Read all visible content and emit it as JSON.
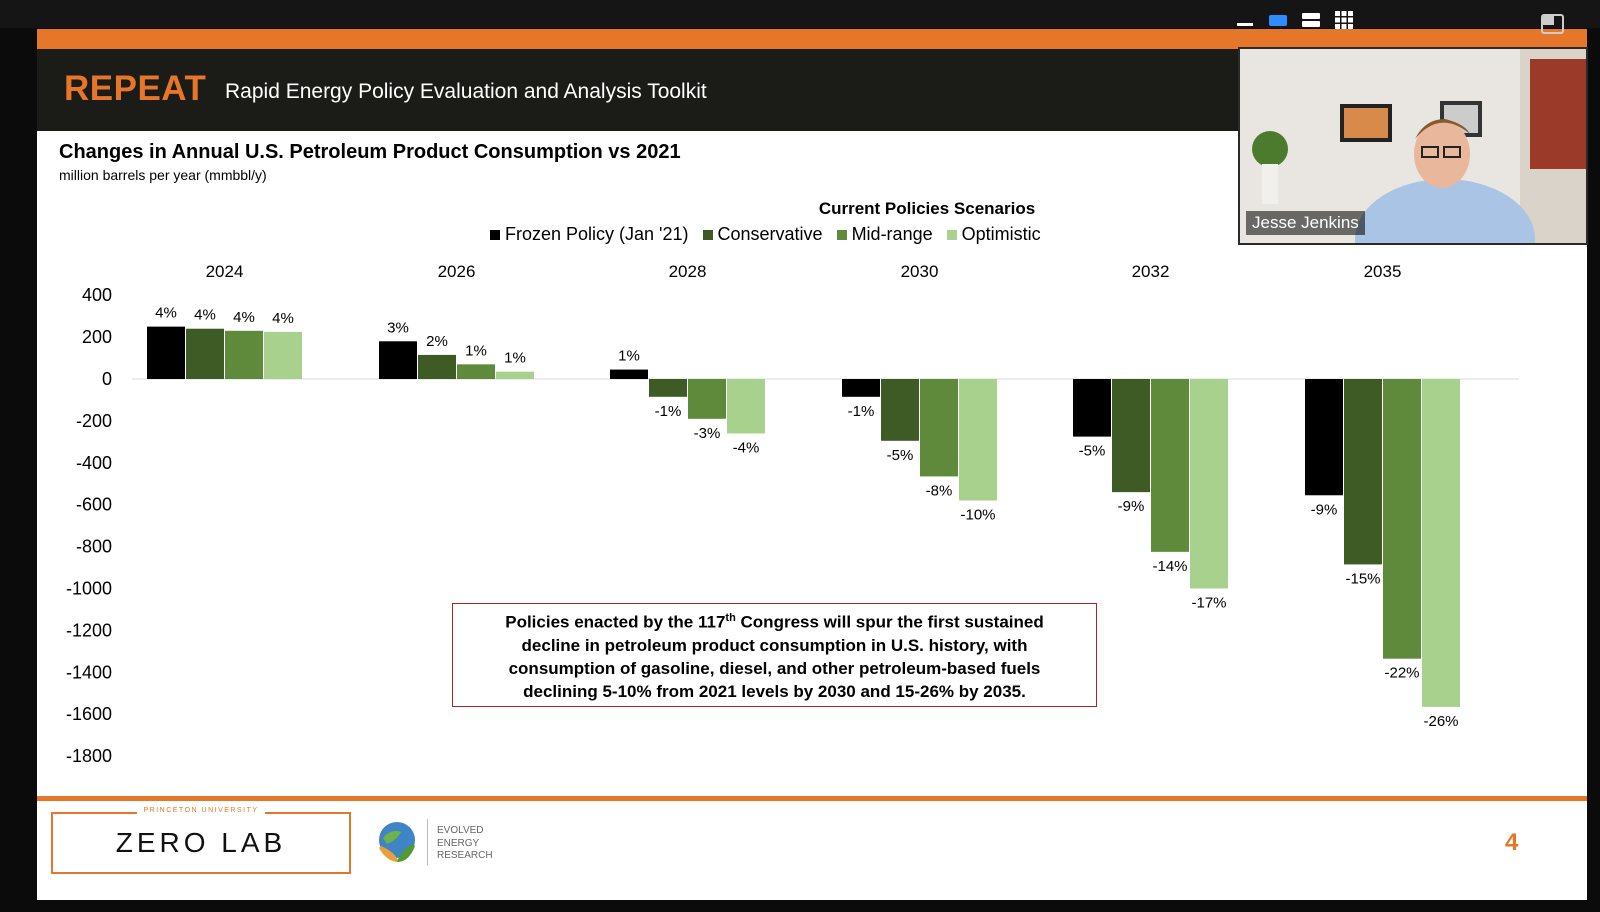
{
  "slide": {
    "brand": "REPEAT",
    "subtitle": "Rapid Energy Policy Evaluation and Analysis Toolkit",
    "page_number": "4",
    "callout": {
      "line1_before": "Policies enacted by the 117",
      "line1_sup": "th",
      "line1_after": " Congress will spur the first sustained decline in petroleum product consumption in U.S. history, with consumption of gasoline, diesel, and other petroleum-based fuels declining 5-10% from 2021 levels by 2030 and 15-26% by 2035."
    },
    "footer": {
      "princeton": "PRINCETON UNIVERSITY",
      "zero_lab": "ZERO LAB",
      "eer_line1": "EVOLVED",
      "eer_line2": "ENERGY",
      "eer_line3": "RESEARCH"
    }
  },
  "meeting": {
    "participant_name": "Jesse Jenkins",
    "controls": [
      "minimize-icon",
      "speaker-view-icon",
      "stack-view-icon",
      "gallery-view-icon",
      "maximize-icon"
    ]
  },
  "colors": {
    "orange": "#e5762a",
    "frozen": "#000000",
    "conservative": "#3e5a25",
    "midrange": "#5f8a3b",
    "optimistic": "#a9d18e"
  },
  "chart_data": {
    "type": "bar",
    "title": "Changes in Annual U.S. Petroleum Product Consumption vs 2021",
    "ylabel": "million barrels per year (mmbbl/y)",
    "legend_title": "Current Policies Scenarios",
    "categories": [
      "2024",
      "2026",
      "2028",
      "2030",
      "2032",
      "2035"
    ],
    "yticks": [
      "400",
      "200",
      "0",
      "-200",
      "-400",
      "-600",
      "-800",
      "-1000",
      "-1200",
      "-1400",
      "-1600",
      "-1800"
    ],
    "ylim": [
      -1800,
      400
    ],
    "series": [
      {
        "name": "Frozen Policy (Jan '21)",
        "color_key": "frozen",
        "values": [
          250,
          180,
          45,
          -85,
          -275,
          -555
        ],
        "labels": [
          "4%",
          "3%",
          "1%",
          "-1%",
          "-5%",
          "-9%"
        ]
      },
      {
        "name": "Conservative",
        "color_key": "conservative",
        "values": [
          240,
          115,
          -85,
          -295,
          -540,
          -885
        ],
        "labels": [
          "4%",
          "2%",
          "-1%",
          "-5%",
          "-9%",
          "-15%"
        ]
      },
      {
        "name": "Mid-range",
        "color_key": "midrange",
        "values": [
          230,
          70,
          -190,
          -465,
          -825,
          -1335
        ],
        "labels": [
          "4%",
          "1%",
          "-3%",
          "-8%",
          "-14%",
          "-22%"
        ]
      },
      {
        "name": "Optimistic",
        "color_key": "optimistic",
        "values": [
          225,
          35,
          -260,
          -580,
          -1000,
          -1565
        ],
        "labels": [
          "4%",
          "1%",
          "-4%",
          "-10%",
          "-17%",
          "-26%"
        ]
      }
    ]
  }
}
